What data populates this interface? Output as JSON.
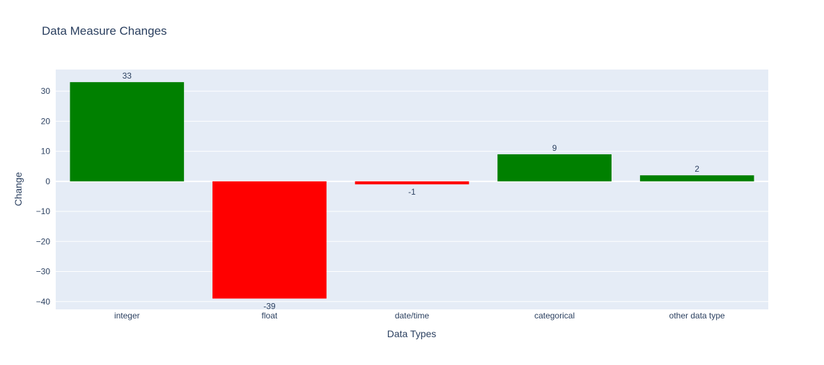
{
  "chart_data": {
    "type": "bar",
    "title": "Data Measure Changes",
    "xlabel": "Data Types",
    "ylabel": "Change",
    "categories": [
      "integer",
      "float",
      "date/time",
      "categorical",
      "other data type"
    ],
    "values": [
      33,
      -39,
      -1,
      9,
      2
    ],
    "labels": [
      "33",
      "-39",
      "-1",
      "9",
      "2"
    ],
    "ylim": [
      -42.6,
      37.2
    ],
    "yticks": [
      -40,
      -30,
      -20,
      -10,
      0,
      10,
      20,
      30
    ],
    "ytick_labels": [
      "−40",
      "−30",
      "−20",
      "−10",
      "0",
      "10",
      "20",
      "30"
    ],
    "grid": true,
    "legend": "none",
    "colors": {
      "positive": "#008000",
      "negative": "#ff0000",
      "plot_background": "#e5ecf6",
      "grid": "#ffffff",
      "text": "#2a3f5f"
    }
  }
}
